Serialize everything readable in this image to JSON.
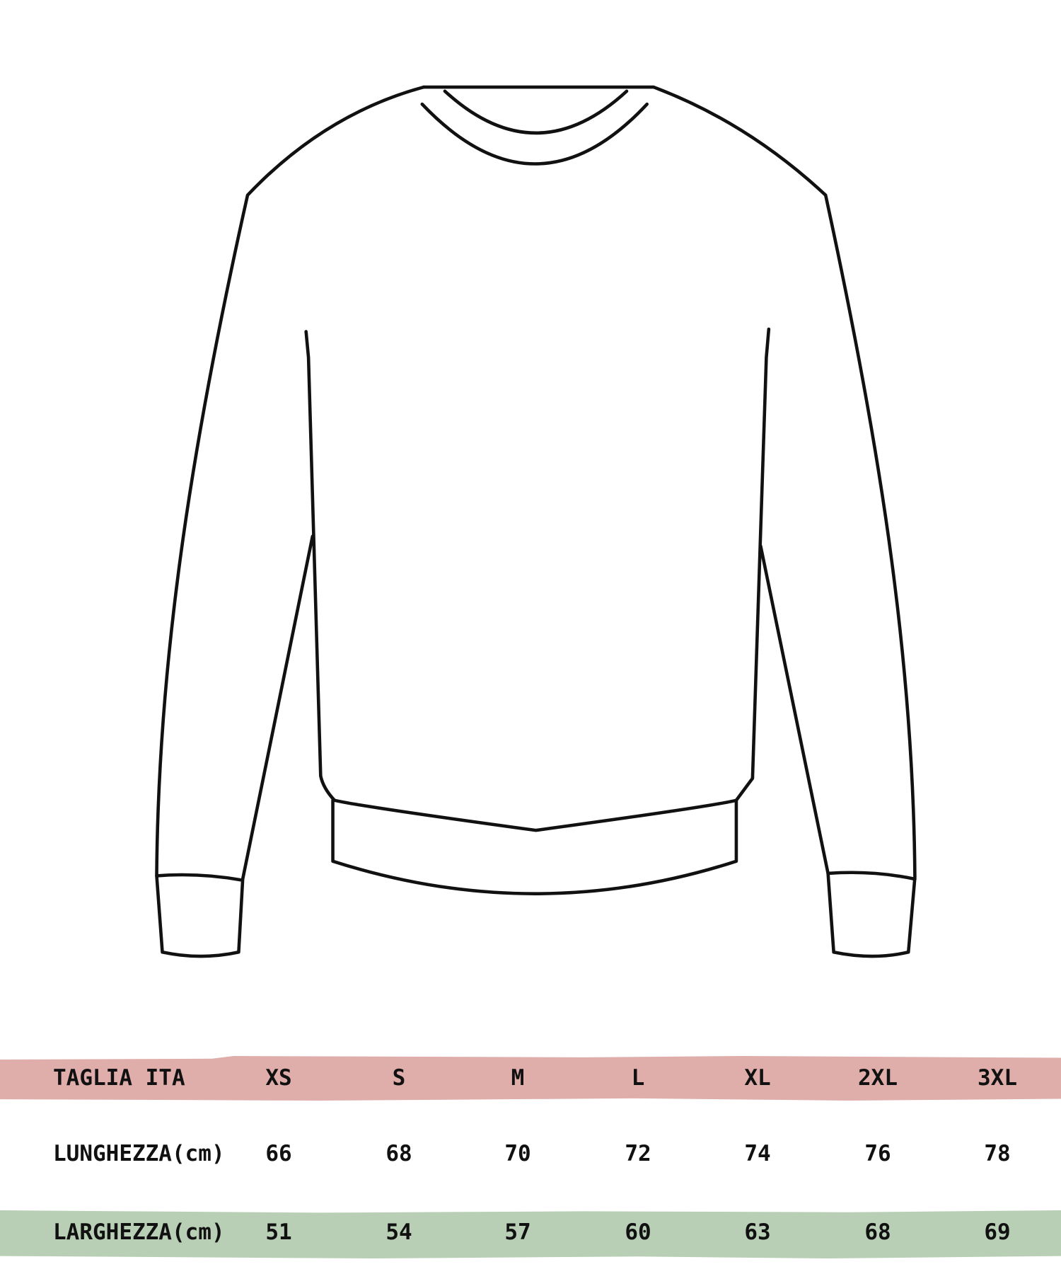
{
  "table": {
    "header": {
      "label": "TAGLIA ITA",
      "sizes": [
        "XS",
        "S",
        "M",
        "L",
        "XL",
        "2XL",
        "3XL"
      ]
    },
    "rows": [
      {
        "label": "LUNGHEZZA(cm)",
        "values": [
          "66",
          "68",
          "70",
          "72",
          "74",
          "76",
          "78"
        ]
      },
      {
        "label": "LARGHEZZA(cm)",
        "values": [
          "51",
          "54",
          "57",
          "60",
          "63",
          "68",
          "69"
        ]
      }
    ]
  },
  "colors": {
    "header_band": "#dfadaa",
    "width_band": "#b8ceb5",
    "outline": "#111111"
  }
}
